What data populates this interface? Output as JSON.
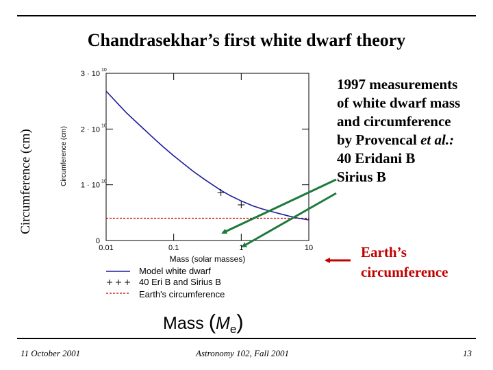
{
  "slide": {
    "title": "Chandrasekhar’s first white dwarf theory",
    "y_axis_outer_label": "Circumference (cm)",
    "mass_label_text": "Mass",
    "mass_label_symbol": "M",
    "mass_label_subscript": "e",
    "measurements_lines": [
      "1997 measurements",
      "of white dwarf mass",
      "and circumference"
    ],
    "measurements_by": "by Provencal ",
    "measurements_etal": "et al.:",
    "measurements_star1": "40 Eridani B",
    "measurements_star2": "Sirius B",
    "earth_line1": "Earth’s",
    "earth_line2": "circumference",
    "footer_left": "11 October 2001",
    "footer_center": "Astronomy 102, Fall 2001",
    "footer_right": "13"
  },
  "colors": {
    "model": "#1a1a9a",
    "earth": "#c00000",
    "arrow": "#1e7a3a"
  },
  "chart_data": {
    "type": "line",
    "xlabel": "Mass (solar masses)",
    "ylabel": "Circumference (cm)",
    "x_scale": "log",
    "xlim": [
      0.01,
      10
    ],
    "ylim": [
      0,
      30000000000.0
    ],
    "x_ticks": [
      0.01,
      0.1,
      1,
      10
    ],
    "x_tick_labels": [
      "0.01",
      "0.1",
      "1",
      "10"
    ],
    "y_ticks": [
      0,
      10000000000.0,
      20000000000.0,
      30000000000.0
    ],
    "y_tick_labels": [
      "0",
      "1 · 10",
      "2 · 10",
      "3 · 10"
    ],
    "y_tick_exponents": [
      "",
      "10",
      "10",
      "10"
    ],
    "legend_position": "bottom",
    "series": [
      {
        "name": "Model white dwarf",
        "style": "line",
        "x": [
          0.01,
          0.015,
          0.02,
          0.03,
          0.05,
          0.07,
          0.1,
          0.15,
          0.2,
          0.3,
          0.5,
          0.7,
          1,
          1.5,
          2,
          3,
          5,
          7,
          10
        ],
        "y": [
          26800000000.0,
          24500000000.0,
          22900000000.0,
          20900000000.0,
          18400000000.0,
          16800000000.0,
          15200000000.0,
          13500000000.0,
          12300000000.0,
          10800000000.0,
          9000000000.0,
          8000000000.0,
          7100000000.0,
          6200000000.0,
          5700000000.0,
          5100000000.0,
          4400000000.0,
          4000000000.0,
          3700000000.0
        ]
      },
      {
        "name": "40 Eri B and Sirius B",
        "style": "points",
        "x": [
          0.5,
          1.0
        ],
        "y": [
          8600000000.0,
          6400000000.0
        ]
      },
      {
        "name": "Earth's circumference",
        "style": "dashed",
        "x": [
          0.01,
          10
        ],
        "y": [
          4000000000.0,
          4000000000.0
        ]
      }
    ]
  }
}
